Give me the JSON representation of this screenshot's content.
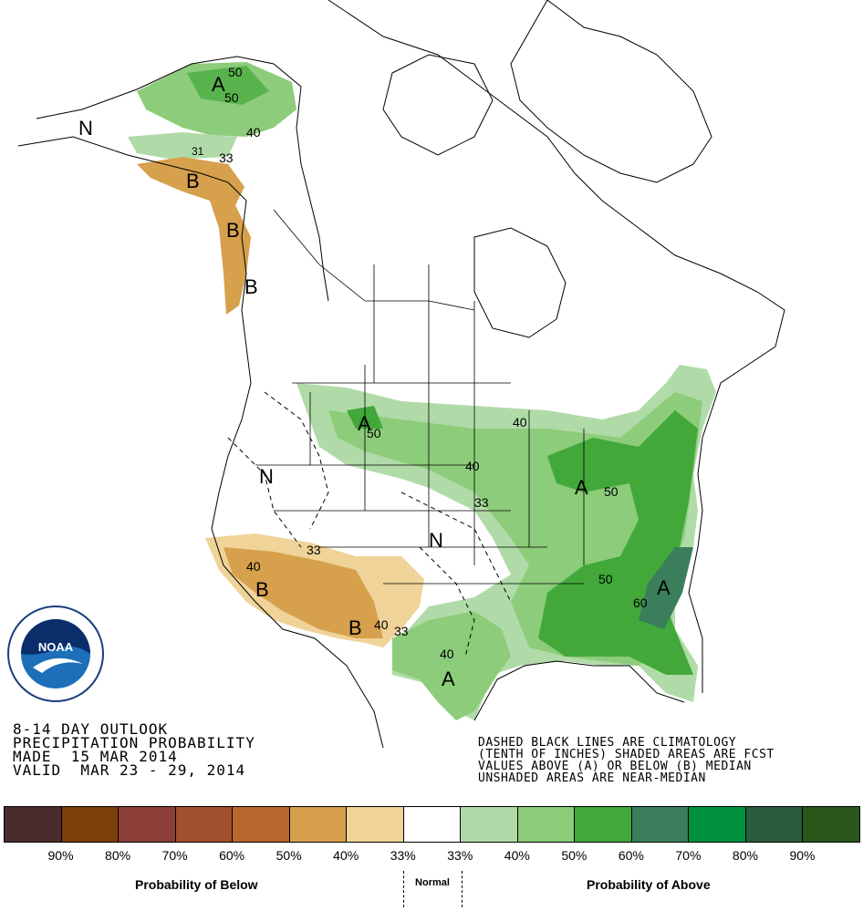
{
  "title_lines": [
    "8-14 DAY OUTLOOK",
    "PRECIPITATION PROBABILITY",
    "MADE  15 MAR 2014",
    "VALID  MAR 23 - 29, 2014"
  ],
  "note_lines": [
    "DASHED BLACK LINES ARE CLIMATOLOGY",
    "(TENTH OF INCHES) SHADED AREAS ARE FCST",
    "VALUES ABOVE (A) OR BELOW (B) MEDIAN",
    "UNSHADED AREAS ARE NEAR-MEDIAN"
  ],
  "logo": {
    "text": "NOAA",
    "ring_text": "NATIONAL OCEANIC AND ATMOSPHERIC ADMINISTRATION · U.S. DEPARTMENT OF COMMERCE"
  },
  "map_labels": {
    "alaska_a": "A",
    "alaska_50a": "50",
    "alaska_50b": "50",
    "alaska_40": "40",
    "alaska_33": "33",
    "alaska_31": "31",
    "alaska_n": "N",
    "se_alaska_b1": "B",
    "se_alaska_b2": "B",
    "se_alaska_b3": "B",
    "plains_a": "A",
    "plains_50": "50",
    "upper_40": "40",
    "mid_40": "40",
    "great_lakes_a": "A",
    "great_lakes_50": "50",
    "mid_33": "33",
    "west_n": "N",
    "central_n": "N",
    "sw_b": "B",
    "sw_40": "40",
    "sw_33": "33",
    "nm_b": "B",
    "nm_40": "40",
    "nm_33": "33",
    "tx_a": "A",
    "tx_40": "40",
    "se_50": "50",
    "se_60": "60",
    "se_a": "A"
  },
  "legend": {
    "colors": [
      "#4a2c2c",
      "#7b3f0a",
      "#8b3f36",
      "#a1502d",
      "#b8652e",
      "#d6a04d",
      "#efd398",
      "#ffffff",
      "#b0dba8",
      "#8ccc7a",
      "#41a839",
      "#3a7e5c",
      "#00913d",
      "#2b5c3c",
      "#29561b"
    ],
    "percent_labels": [
      "90%",
      "80%",
      "70%",
      "60%",
      "50%",
      "40%",
      "33%",
      "33%",
      "40%",
      "50%",
      "60%",
      "70%",
      "80%",
      "90%"
    ],
    "below_label": "Probability of Below",
    "normal_label": "Normal",
    "above_label": "Probability of Above"
  }
}
